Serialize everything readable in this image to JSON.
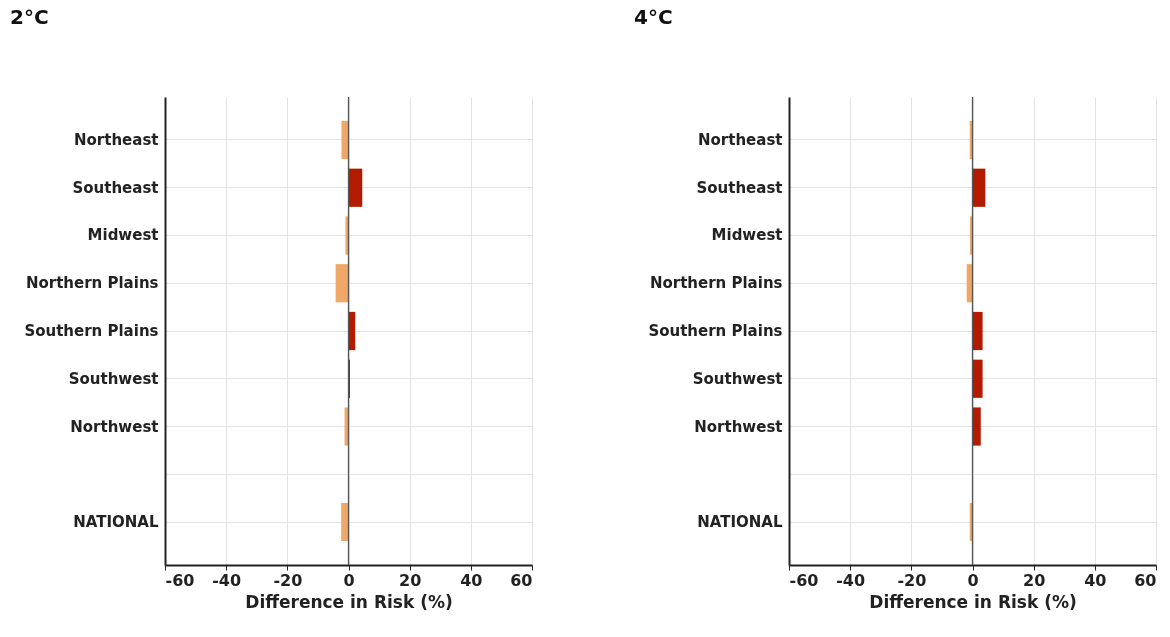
{
  "chart_data": [
    {
      "type": "bar",
      "orientation": "horizontal",
      "title": "2°C",
      "xlabel": "Difference in Risk (%)",
      "categories": [
        "Northeast",
        "Southeast",
        "Midwest",
        "Northern Plains",
        "Southern Plains",
        "Southwest",
        "Northwest",
        null,
        "NATIONAL"
      ],
      "values": [
        -2.3,
        4.5,
        -1.0,
        -4.2,
        2.2,
        0.5,
        -1.3,
        null,
        -2.4
      ],
      "colors": [
        "#f0a868",
        "#b31b00",
        "#f0a868",
        "#f0a868",
        "#b31b00",
        "#b31b00",
        "#f0a868",
        null,
        "#f0a868"
      ],
      "xlim": [
        -60,
        60
      ],
      "xticks": [
        -60,
        -40,
        -20,
        0,
        20,
        40,
        60
      ],
      "grid": true,
      "ref_lines": [
        {
          "axis": "x",
          "value": 0,
          "color": "#555555"
        }
      ]
    },
    {
      "type": "bar",
      "orientation": "horizontal",
      "title": "4°C",
      "xlabel": "Difference in Risk (%)",
      "categories": [
        "Northeast",
        "Southeast",
        "Midwest",
        "Northern Plains",
        "Southern Plains",
        "Southwest",
        "Northwest",
        null,
        "NATIONAL"
      ],
      "values": [
        -0.9,
        4.2,
        -0.8,
        -1.9,
        3.3,
        3.3,
        2.7,
        null,
        -0.9
      ],
      "colors": [
        "#f0a868",
        "#b31b00",
        "#f0a868",
        "#f0a868",
        "#b31b00",
        "#b31b00",
        "#b31b00",
        null,
        "#f0a868"
      ],
      "xlim": [
        -60,
        60
      ],
      "xticks": [
        -60,
        -40,
        -20,
        0,
        20,
        40,
        60
      ],
      "grid": true,
      "ref_lines": [
        {
          "axis": "x",
          "value": 0,
          "color": "#555555"
        }
      ]
    }
  ]
}
